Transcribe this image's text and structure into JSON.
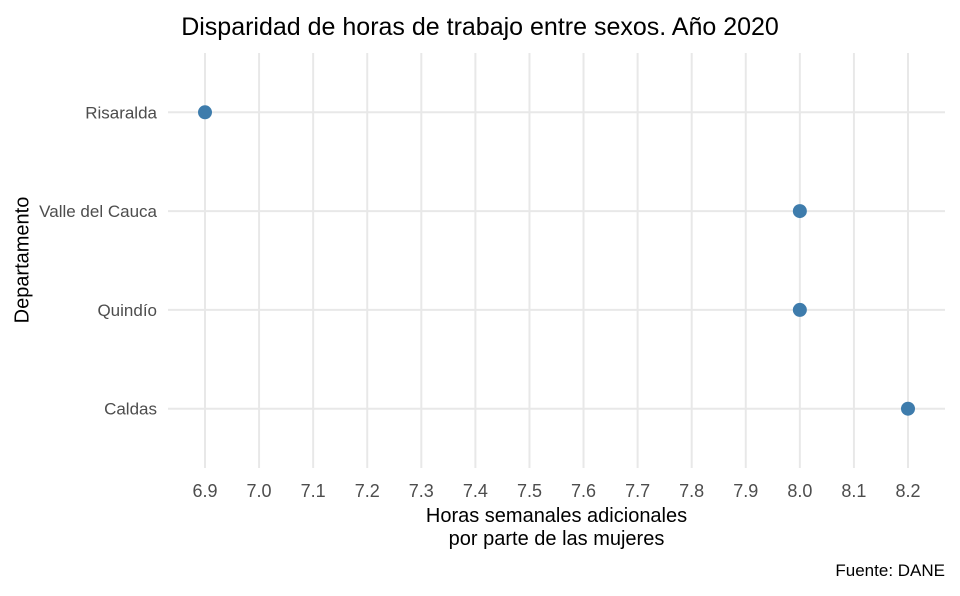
{
  "chart": {
    "title": "Disparidad de horas de trabajo entre sexos. Año 2020",
    "y_axis_title": "Departamento",
    "x_axis_title_line1": "Horas semanales adicionales",
    "x_axis_title_line2": "por parte de las mujeres",
    "caption": "Fuente: DANE"
  },
  "chart_data": {
    "type": "scatter",
    "subtype": "horizontal-dot-plot",
    "title": "Disparidad de horas de trabajo entre sexos. Año 2020",
    "xlabel": "Horas semanales adicionales por parte de las mujeres",
    "ylabel": "Departamento",
    "caption": "Fuente: DANE",
    "categories": [
      "Risaralda",
      "Valle del Cauca",
      "Quindío",
      "Caldas"
    ],
    "values": [
      6.9,
      8.0,
      8.0,
      8.2
    ],
    "x_ticks": [
      "6.9",
      "7.0",
      "7.1",
      "7.2",
      "7.3",
      "7.4",
      "7.5",
      "7.6",
      "7.7",
      "7.8",
      "7.9",
      "8.0",
      "8.1",
      "8.2"
    ],
    "x_tick_values": [
      6.9,
      7.0,
      7.1,
      7.2,
      7.3,
      7.4,
      7.5,
      7.6,
      7.7,
      7.8,
      7.9,
      8.0,
      8.1,
      8.2
    ],
    "xlim": [
      6.9,
      8.2
    ],
    "grid": true,
    "legend": false,
    "colors": {
      "point": "#3e7cac",
      "grid": "#e8e8e8",
      "tick_label": "#4d4d4d",
      "text": "#000000",
      "background": "#ffffff"
    }
  }
}
